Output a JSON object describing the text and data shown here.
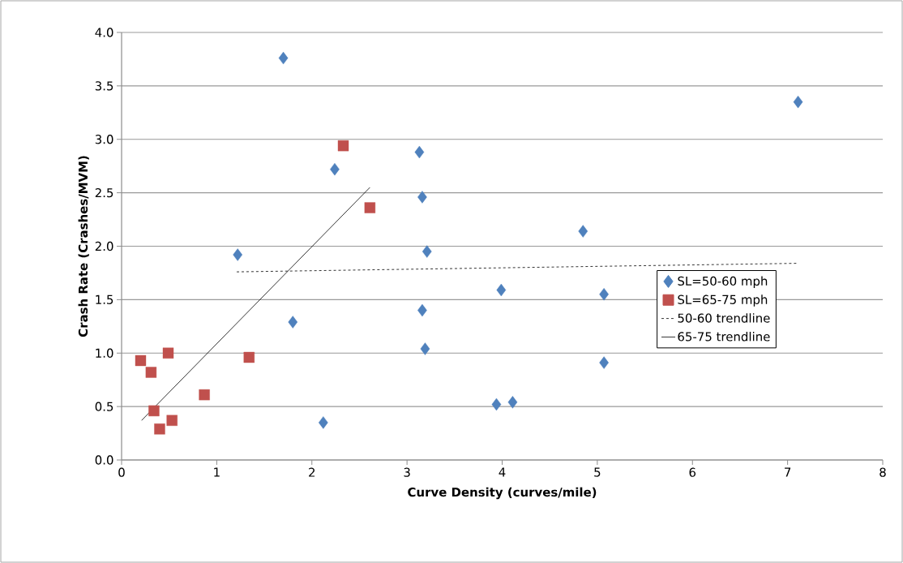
{
  "chart_data": {
    "type": "scatter",
    "xlabel": "Curve Density (curves/mile)",
    "ylabel": "Crash Rate (Crashes/MVM)",
    "xlim": [
      0,
      8
    ],
    "xticks": [
      0,
      1,
      2,
      3,
      4,
      5,
      6,
      7,
      8
    ],
    "ylim": [
      0,
      4
    ],
    "yticks": [
      {
        "value": 0,
        "label": "0.0"
      },
      {
        "value": 0.5,
        "label": "0.5"
      },
      {
        "value": 1,
        "label": "1.0"
      },
      {
        "value": 1.5,
        "label": "1.5"
      },
      {
        "value": 2,
        "label": "2.0"
      },
      {
        "value": 2.5,
        "label": "2.5"
      },
      {
        "value": 3,
        "label": "3.0"
      },
      {
        "value": 3.5,
        "label": "3.5"
      },
      {
        "value": 4,
        "label": "4.0"
      }
    ],
    "grid": "y",
    "legend": "right",
    "series": [
      {
        "name": "SL=50-60 mph",
        "marker": "diamond",
        "color": "#4f81bd",
        "x": [
          1.7,
          7.11,
          2.24,
          3.13,
          3.16,
          4.85,
          1.22,
          3.21,
          3.99,
          5.07,
          3.16,
          1.8,
          3.19,
          5.07,
          3.94,
          4.11,
          2.12
        ],
        "values": [
          3.76,
          3.35,
          2.72,
          2.88,
          2.46,
          2.14,
          1.92,
          1.95,
          1.59,
          1.55,
          1.4,
          1.29,
          1.04,
          0.91,
          0.52,
          0.54,
          0.35
        ]
      },
      {
        "name": "SL=65-75 mph",
        "marker": "square",
        "color": "#c0504d",
        "x": [
          2.33,
          2.61,
          0.2,
          0.31,
          0.49,
          1.34,
          0.87,
          0.34,
          0.53,
          0.4
        ],
        "values": [
          2.94,
          2.36,
          0.93,
          0.82,
          1.0,
          0.96,
          0.61,
          0.46,
          0.37,
          0.29
        ]
      },
      {
        "name": "50-60 trendline",
        "type": "line",
        "marker": "none",
        "line_style": "dashed",
        "color": "#000000",
        "x": [
          1.21,
          7.11
        ],
        "values": [
          1.76,
          1.84
        ]
      },
      {
        "name": "65-75 trendline",
        "type": "line",
        "marker": "none",
        "line_style": "solid",
        "color": "#000000",
        "x": [
          0.21,
          2.61
        ],
        "values": [
          0.37,
          2.55
        ]
      }
    ]
  }
}
